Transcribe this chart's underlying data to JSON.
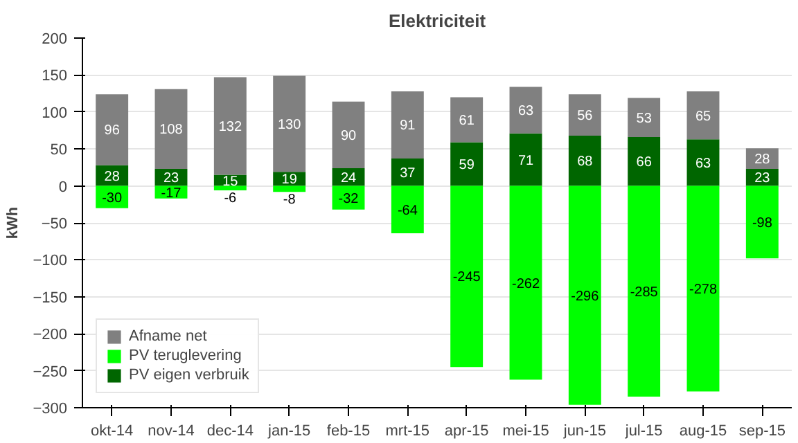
{
  "chart_data": {
    "type": "bar",
    "title": "Elektriciteit",
    "ylabel": "kWh",
    "stacked": true,
    "data_labels": true,
    "grid": "y",
    "legend": "bottom left",
    "categories": [
      "okt-14",
      "nov-14",
      "dec-14",
      "jan-15",
      "feb-15",
      "mrt-15",
      "apr-15",
      "mei-15",
      "jun-15",
      "jul-15",
      "aug-15",
      "sep-15"
    ],
    "ylim": [
      -300,
      200
    ],
    "yticks": [
      -300,
      -250,
      -200,
      -150,
      -100,
      -50,
      0,
      50,
      100,
      150,
      200
    ],
    "series": [
      {
        "name": "PV eigen verbruik",
        "color": "#006600",
        "values": [
          28,
          23,
          15,
          19,
          24,
          37,
          59,
          71,
          68,
          66,
          63,
          23
        ]
      },
      {
        "name": "PV teruglevering",
        "color": "#00ff00",
        "values": [
          -30,
          -17,
          -6,
          -8,
          -32,
          -64,
          -245,
          -262,
          -296,
          -285,
          -278,
          -98
        ]
      },
      {
        "name": "Afname net",
        "color": "#808080",
        "values": [
          96,
          108,
          132,
          130,
          90,
          91,
          61,
          63,
          56,
          53,
          65,
          28
        ]
      }
    ]
  }
}
